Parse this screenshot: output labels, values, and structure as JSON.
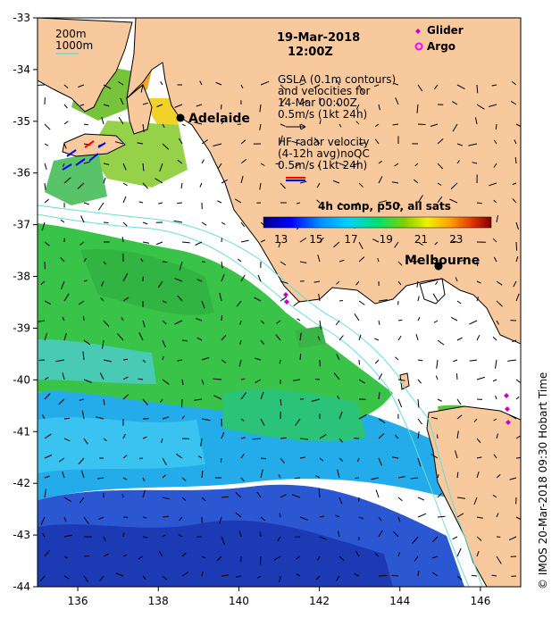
{
  "map": {
    "date": "19-Mar-2018",
    "time": "12:00Z",
    "annotations": [
      "GSLA (0.1m contours)",
      "and velocities for",
      "14-Mar 00:00Z",
      "0.5m/s (1kt 24h)",
      "HF radar velocity",
      "(4-12h avg)noQC",
      "0.5m/s (1kt 24h)"
    ],
    "isobath_labels": [
      "200m",
      "1000m"
    ],
    "legend": [
      {
        "label": "Glider",
        "color": "#cc00cc",
        "symbol": "diamond"
      },
      {
        "label": "Argo",
        "color": "#ff00ff",
        "symbol": "circle"
      }
    ],
    "colorbar": {
      "title": "4h comp, p50, all sats",
      "ticks": [
        "13",
        "15",
        "17",
        "19",
        "21",
        "23"
      ],
      "range": [
        12,
        25
      ]
    },
    "cities": [
      {
        "name": "Adelaide",
        "lon": 138.6,
        "lat": -34.93
      },
      {
        "name": "Melbourne",
        "lon": 144.96,
        "lat": -37.81
      }
    ],
    "x_ticks": [
      "136",
      "138",
      "140",
      "142",
      "144",
      "146"
    ],
    "y_ticks": [
      "-33",
      "-34",
      "-35",
      "-36",
      "-37",
      "-38",
      "-39",
      "-40",
      "-41",
      "-42",
      "-43",
      "-44"
    ],
    "extent": {
      "lon": [
        135,
        147
      ],
      "lat": [
        -44,
        -33
      ]
    },
    "credit": "© IMOS 20-Mar-2018 09:30 Hobart Time",
    "colors": {
      "land": "#f7c99c",
      "isobath": "#66dddd",
      "border": "#000000"
    }
  }
}
